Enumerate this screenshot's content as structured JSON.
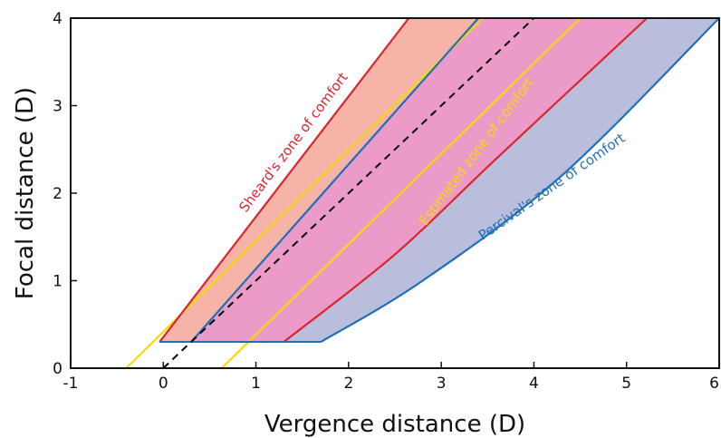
{
  "chart_data": {
    "type": "line",
    "xlabel": "Vergence distance (D)",
    "ylabel": "Focal distance (D)",
    "xlim": [
      -1,
      6
    ],
    "ylim": [
      0,
      4
    ],
    "xticks": [
      "-1",
      "0",
      "1",
      "2",
      "3",
      "4",
      "5",
      "6"
    ],
    "yticks": [
      "0",
      "1",
      "2",
      "3",
      "4"
    ],
    "grid": false,
    "zones": [
      {
        "name": "Sheard's zone of comfort",
        "color": "#d8262e",
        "fill": "#f6b4a8",
        "near": [
          [
            -0.04,
            0.3
          ],
          [
            2.65,
            4.0
          ]
        ],
        "far": [
          [
            1.3,
            0.3
          ],
          [
            2.5,
            1.3
          ],
          [
            3.6,
            2.4
          ],
          [
            5.22,
            4.0
          ]
        ]
      },
      {
        "name": "Estimated zone of comfort",
        "color": "#f5d90a",
        "near": [
          [
            -0.4,
            0.0
          ],
          [
            3.45,
            4.0
          ]
        ],
        "far": [
          [
            0.63,
            0.0
          ],
          [
            4.5,
            4.0
          ]
        ]
      },
      {
        "name": "Percival's zone of comfort",
        "color": "#1f6fb5",
        "fill": "#b9bedd",
        "near": [
          [
            0.3,
            0.3
          ],
          [
            3.4,
            4.0
          ]
        ],
        "far": [
          [
            1.7,
            0.3
          ],
          [
            2.8,
            1.0
          ],
          [
            4.3,
            2.2
          ],
          [
            6.0,
            4.0
          ]
        ]
      }
    ],
    "overlap_fill": "#ec9bc8",
    "identity_line": {
      "style": "dashed",
      "color": "#000000",
      "points": [
        [
          0,
          0
        ],
        [
          4.0,
          4.0
        ]
      ]
    }
  }
}
